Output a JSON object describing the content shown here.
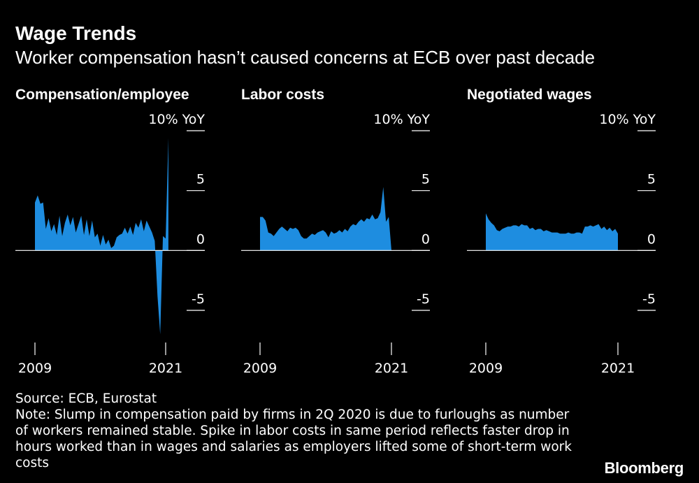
{
  "title": "Wage Trends",
  "subtitle": "Worker compensation hasn’t caused concerns at ECB over past decade",
  "source": "Source: ECB, Eurostat",
  "note": "Note: Slump in compensation paid by firms in 2Q 2020 is due to furloughs as number of workers remained stable. Spike in labor costs in same period reflects faster drop in hours worked than in wages and salaries as employers lifted some of short-term work costs",
  "brand": "Bloomberg",
  "colors": {
    "background": "#000000",
    "area": "#1e8de0",
    "text": "#ffffff"
  },
  "chart_data": [
    {
      "type": "area",
      "title": "Compensation/employee",
      "unit_label": "10% YoY",
      "y_ticks": [
        "10% YoY",
        "5",
        "0",
        "-5"
      ],
      "x_tick_labels": [
        "2009",
        "2021"
      ],
      "xlim": [
        2009,
        2021
      ],
      "ylim": [
        -7,
        10
      ],
      "x": [
        2009.0,
        2009.25,
        2009.5,
        2009.75,
        2010.0,
        2010.25,
        2010.5,
        2010.75,
        2011.0,
        2011.25,
        2011.5,
        2011.75,
        2012.0,
        2012.25,
        2012.5,
        2012.75,
        2013.0,
        2013.25,
        2013.5,
        2013.75,
        2014.0,
        2014.25,
        2014.5,
        2014.75,
        2015.0,
        2015.25,
        2015.5,
        2015.75,
        2016.0,
        2016.25,
        2016.5,
        2016.75,
        2017.0,
        2017.25,
        2017.5,
        2017.75,
        2018.0,
        2018.25,
        2018.5,
        2018.75,
        2019.0,
        2019.25,
        2019.5,
        2019.75,
        2020.0,
        2020.25,
        2020.5,
        2020.75,
        2021.0,
        2021.25
      ],
      "values": [
        4.0,
        4.6,
        3.9,
        4.0,
        1.8,
        2.7,
        1.6,
        2.2,
        1.3,
        2.9,
        1.2,
        2.3,
        3.0,
        2.1,
        2.8,
        1.5,
        2.2,
        2.9,
        1.3,
        2.6,
        1.2,
        2.5,
        1.1,
        1.4,
        0.4,
        1.3,
        0.5,
        0.9,
        0.2,
        0.4,
        1.1,
        1.3,
        1.4,
        1.9,
        1.4,
        2.0,
        1.3,
        2.3,
        1.9,
        2.6,
        1.6,
        2.5,
        2.0,
        1.5,
        0.8,
        -3.8,
        -7.0,
        1.2,
        1.0,
        9.4
      ]
    },
    {
      "type": "area",
      "title": "Labor costs",
      "unit_label": "10% YoY",
      "y_ticks": [
        "10% YoY",
        "5",
        "0",
        "-5"
      ],
      "x_tick_labels": [
        "2009",
        "2021"
      ],
      "xlim": [
        2009,
        2021
      ],
      "ylim": [
        -7,
        10
      ],
      "x": [
        2009.0,
        2009.25,
        2009.5,
        2009.75,
        2010.0,
        2010.25,
        2010.5,
        2010.75,
        2011.0,
        2011.25,
        2011.5,
        2011.75,
        2012.0,
        2012.25,
        2012.5,
        2012.75,
        2013.0,
        2013.25,
        2013.5,
        2013.75,
        2014.0,
        2014.25,
        2014.5,
        2014.75,
        2015.0,
        2015.25,
        2015.5,
        2015.75,
        2016.0,
        2016.25,
        2016.5,
        2016.75,
        2017.0,
        2017.25,
        2017.5,
        2017.75,
        2018.0,
        2018.25,
        2018.5,
        2018.75,
        2019.0,
        2019.25,
        2019.5,
        2019.75,
        2020.0,
        2020.25,
        2020.5,
        2020.75,
        2021.0,
        2021.25
      ],
      "values": [
        2.8,
        2.8,
        2.5,
        1.5,
        1.4,
        1.2,
        1.5,
        1.8,
        2.0,
        1.8,
        1.6,
        1.9,
        1.8,
        1.9,
        1.7,
        1.2,
        1.0,
        1.0,
        1.2,
        1.4,
        1.3,
        1.5,
        1.6,
        1.7,
        1.5,
        1.1,
        1.6,
        1.4,
        1.5,
        1.7,
        1.5,
        1.8,
        1.6,
        2.0,
        2.2,
        2.1,
        2.4,
        2.6,
        2.4,
        2.7,
        2.6,
        3.0,
        2.6,
        2.7,
        3.2,
        5.3,
        2.4,
        2.8,
        0.0,
        0.0
      ]
    },
    {
      "type": "area",
      "title": "Negotiated wages",
      "unit_label": "10% YoY",
      "y_ticks": [
        "10% YoY",
        "5",
        "0",
        "-5"
      ],
      "x_tick_labels": [
        "2009",
        "2021"
      ],
      "xlim": [
        2009,
        2021
      ],
      "ylim": [
        -7,
        10
      ],
      "x": [
        2009.0,
        2009.25,
        2009.5,
        2009.75,
        2010.0,
        2010.25,
        2010.5,
        2010.75,
        2011.0,
        2011.25,
        2011.5,
        2011.75,
        2012.0,
        2012.25,
        2012.5,
        2012.75,
        2013.0,
        2013.25,
        2013.5,
        2013.75,
        2014.0,
        2014.25,
        2014.5,
        2014.75,
        2015.0,
        2015.25,
        2015.5,
        2015.75,
        2016.0,
        2016.25,
        2016.5,
        2016.75,
        2017.0,
        2017.25,
        2017.5,
        2017.75,
        2018.0,
        2018.25,
        2018.5,
        2018.75,
        2019.0,
        2019.25,
        2019.5,
        2019.75,
        2020.0,
        2020.25,
        2020.5,
        2020.75,
        2021.0
      ],
      "values": [
        3.1,
        2.6,
        2.3,
        2.1,
        1.7,
        1.6,
        1.8,
        1.9,
        2.0,
        2.0,
        2.1,
        2.1,
        2.0,
        2.2,
        2.1,
        2.1,
        1.8,
        1.9,
        1.7,
        1.8,
        1.8,
        1.6,
        1.7,
        1.6,
        1.5,
        1.5,
        1.5,
        1.4,
        1.4,
        1.4,
        1.5,
        1.4,
        1.4,
        1.5,
        1.5,
        1.4,
        2.0,
        2.0,
        2.1,
        2.0,
        2.1,
        2.2,
        1.8,
        2.0,
        1.7,
        1.9,
        1.6,
        1.8,
        1.4
      ]
    }
  ]
}
